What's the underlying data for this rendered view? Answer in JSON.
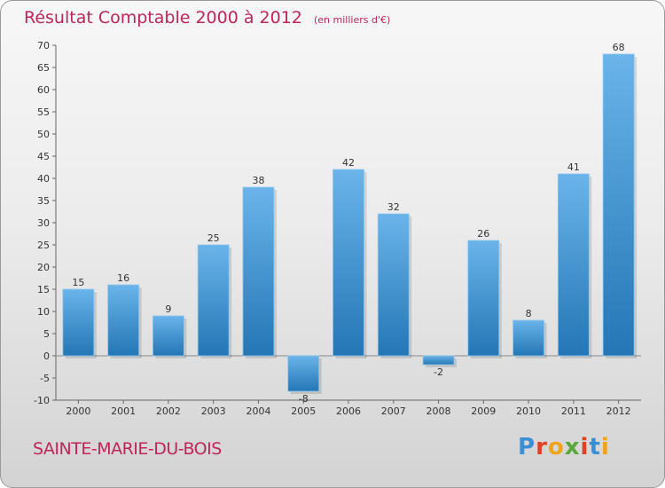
{
  "chart_data": {
    "type": "bar",
    "title": "Résultat Comptable 2000 à 2012",
    "subtitle": "(en milliers d'€)",
    "categories": [
      "2000",
      "2001",
      "2002",
      "2003",
      "2004",
      "2005",
      "2006",
      "2007",
      "2008",
      "2009",
      "2010",
      "2011",
      "2012"
    ],
    "values": [
      15,
      16,
      9,
      25,
      38,
      -8,
      42,
      32,
      -2,
      26,
      8,
      41,
      68
    ],
    "ylim": [
      -10,
      70
    ],
    "yticks": [
      -10,
      -5,
      0,
      5,
      10,
      15,
      20,
      25,
      30,
      35,
      40,
      45,
      50,
      55,
      60,
      65,
      70
    ],
    "xlabel": "",
    "ylabel": "",
    "grid": false
  },
  "footer": {
    "commune": "SAINTE-MARIE-DU-BOIS",
    "brand": "Proxiti"
  },
  "colors": {
    "title": "#c0255a",
    "bar_light": "#6ab4ea",
    "bar_dark": "#2476b5",
    "axis": "#555555"
  }
}
